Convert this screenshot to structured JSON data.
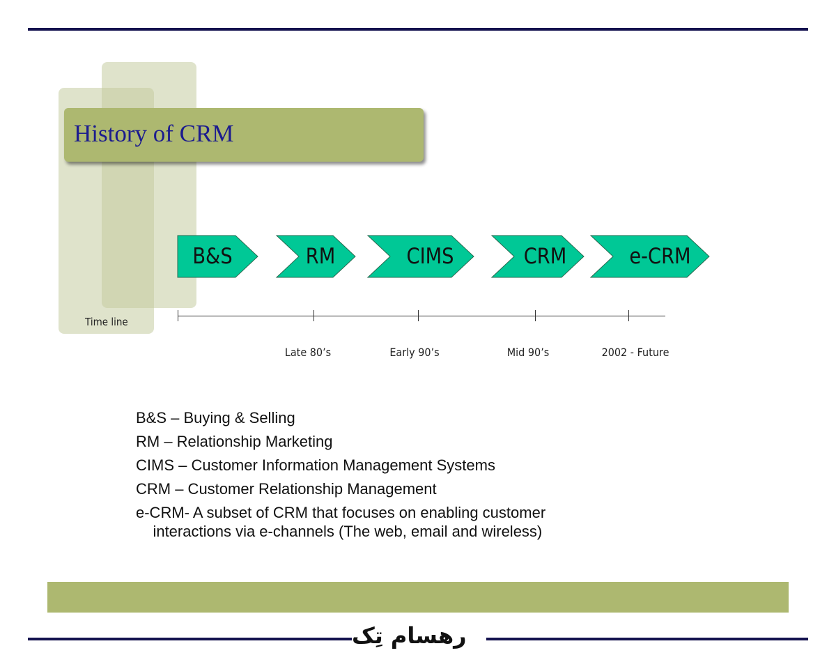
{
  "title": "History of CRM",
  "timeline_label": "Time line",
  "stages": [
    "B&S",
    "RM",
    "CIMS",
    "CRM",
    "e-CRM"
  ],
  "dates": [
    "Late 80’s",
    "Early 90’s",
    "Mid 90’s",
    "2002 - Future"
  ],
  "legend": [
    "B&S – Buying & Selling",
    "RM – Relationship Marketing",
    "CIMS – Customer Information Management Systems",
    "CRM – Customer Relationship Management",
    "e-CRM- A subset of CRM that focuses on enabling customer",
    "    interactions via e-channels (The web, email and wireless)"
  ],
  "logo_text": "رهسام تِک",
  "colors": {
    "accent": "#adb870",
    "chevron": "#00c896",
    "title": "#1c1c8e",
    "rule": "#14124f"
  }
}
